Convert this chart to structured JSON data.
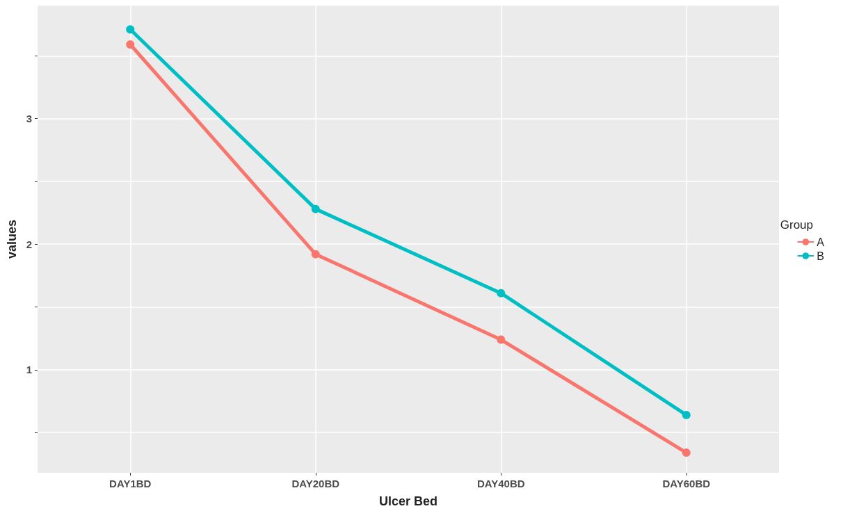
{
  "chart_data": {
    "type": "line",
    "xlabel": "Ulcer Bed",
    "ylabel": "values",
    "legend_title": "Group",
    "categories": [
      "DAY1BD",
      "DAY20BD",
      "DAY40BD",
      "DAY60BD"
    ],
    "series": [
      {
        "name": "A",
        "color": "#f8766d",
        "values": [
          3.59,
          1.92,
          1.24,
          0.34
        ]
      },
      {
        "name": "B",
        "color": "#00bfc4",
        "values": [
          3.71,
          2.28,
          1.61,
          0.64
        ]
      }
    ],
    "ylim": [
      0.18,
      3.9
    ],
    "yticks": [
      {
        "value": 0.5,
        "label": null
      },
      1,
      {
        "value": 1.5,
        "label": null
      },
      2,
      {
        "value": 2.5,
        "label": null
      },
      3,
      {
        "value": 3.5,
        "label": null
      }
    ],
    "grid": true,
    "legend": "right",
    "marker": "circle",
    "line_style": "solid"
  }
}
